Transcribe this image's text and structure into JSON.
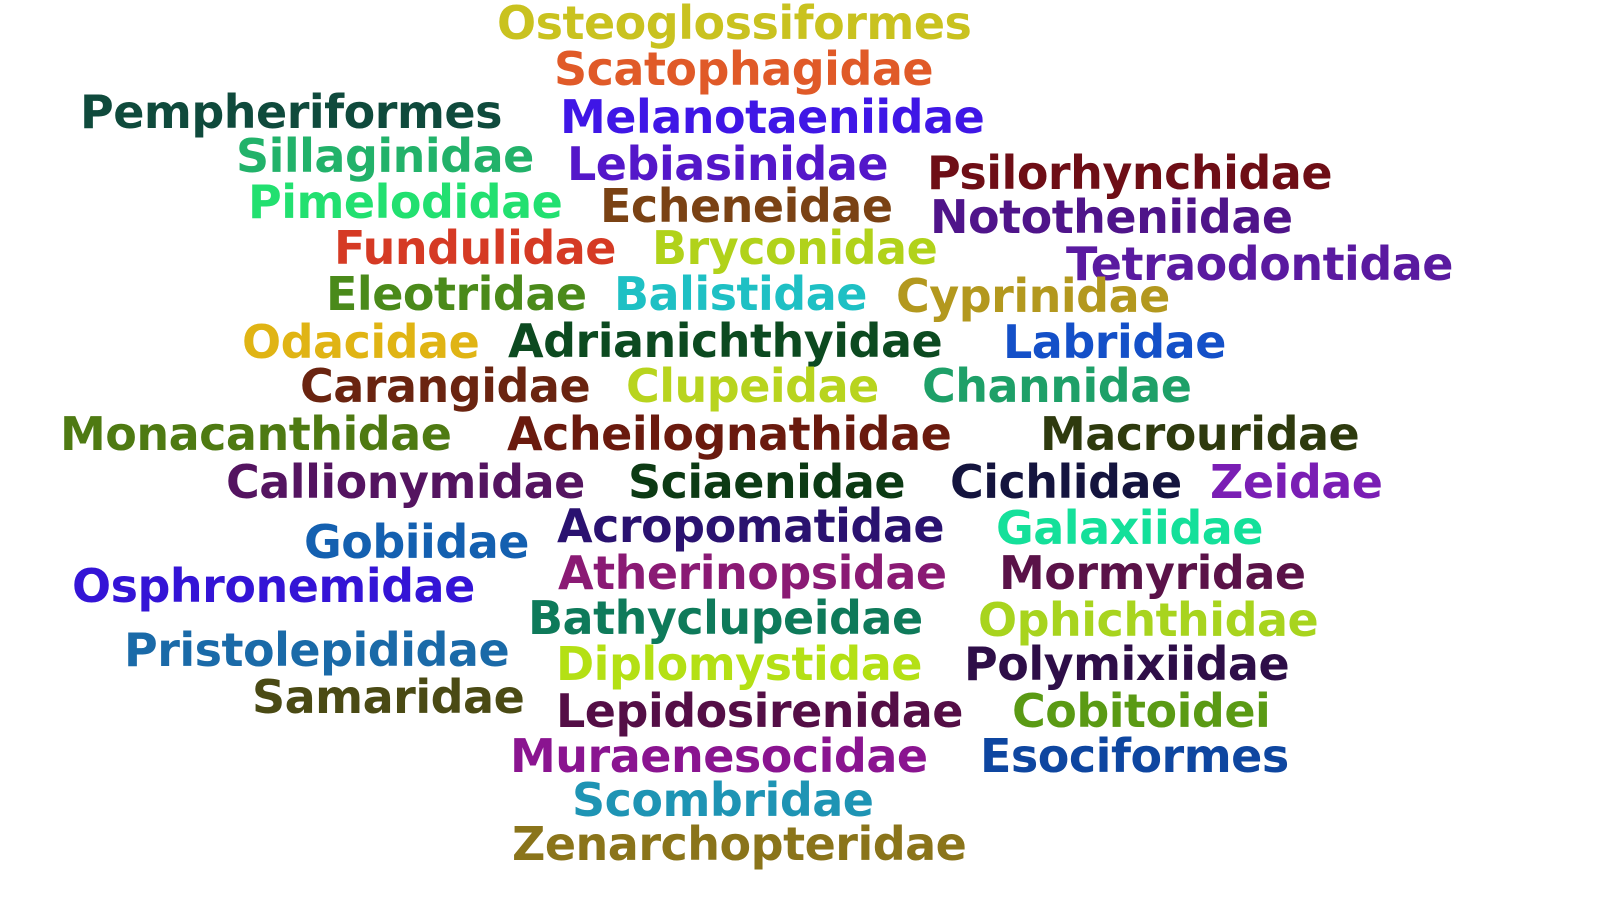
{
  "words": [
    {
      "text": "Osteoglossiformes",
      "color": "#c9c21f"
    },
    {
      "text": "Scatophagidae",
      "color": "#e05a28"
    },
    {
      "text": "Pempheriformes",
      "color": "#0f4a3c"
    },
    {
      "text": "Melanotaeniidae",
      "color": "#3f16e6"
    },
    {
      "text": "Sillaginidae",
      "color": "#22b26a"
    },
    {
      "text": "Lebiasinidae",
      "color": "#5417c9"
    },
    {
      "text": "Psilorhynchidae",
      "color": "#6e0e16"
    },
    {
      "text": "Pimelodidae",
      "color": "#22e070"
    },
    {
      "text": "Echeneidae",
      "color": "#7a4214"
    },
    {
      "text": "Nototheniidae",
      "color": "#4f148a"
    },
    {
      "text": "Fundulidae",
      "color": "#d53a24"
    },
    {
      "text": "Bryconidae",
      "color": "#b1d21a"
    },
    {
      "text": "Tetraodontidae",
      "color": "#5a1aa0"
    },
    {
      "text": "Eleotridae",
      "color": "#4a8a1a"
    },
    {
      "text": "Balistidae",
      "color": "#1ec0c4"
    },
    {
      "text": "Cyprinidae",
      "color": "#b3981e"
    },
    {
      "text": "Odacidae",
      "color": "#e0b414"
    },
    {
      "text": "Adrianichthyidae",
      "color": "#0c4a20"
    },
    {
      "text": "Labridae",
      "color": "#1450c8"
    },
    {
      "text": "Carangidae",
      "color": "#6a2410"
    },
    {
      "text": "Clupeidae",
      "color": "#b8d41e"
    },
    {
      "text": "Channidae",
      "color": "#1ea068"
    },
    {
      "text": "Monacanthidae",
      "color": "#4e7a12"
    },
    {
      "text": "Acheilognathidae",
      "color": "#6a1a0e"
    },
    {
      "text": "Macrouridae",
      "color": "#2e3a0e"
    },
    {
      "text": "Callionymidae",
      "color": "#541460"
    },
    {
      "text": "Sciaenidae",
      "color": "#0c3a14"
    },
    {
      "text": "Cichlidae",
      "color": "#14143e"
    },
    {
      "text": "Zeidae",
      "color": "#7a1eb4"
    },
    {
      "text": "Gobiidae",
      "color": "#1460b0"
    },
    {
      "text": "Acropomatidae",
      "color": "#2a1270"
    },
    {
      "text": "Galaxiidae",
      "color": "#14e09a"
    },
    {
      "text": "Osphronemidae",
      "color": "#3414d6"
    },
    {
      "text": "Atherinopsidae",
      "color": "#8a1a74"
    },
    {
      "text": "Mormyridae",
      "color": "#5a1248"
    },
    {
      "text": "Bathyclupeidae",
      "color": "#0e7a5a"
    },
    {
      "text": "Ophichthidae",
      "color": "#a8d41e"
    },
    {
      "text": "Pristolepididae",
      "color": "#1a6aa8"
    },
    {
      "text": "Diplomystidae",
      "color": "#b4e014"
    },
    {
      "text": "Polymixiidae",
      "color": "#2e0e48"
    },
    {
      "text": "Samaridae",
      "color": "#4a4a14"
    },
    {
      "text": "Lepidosirenidae",
      "color": "#540e46"
    },
    {
      "text": "Cobitoidei",
      "color": "#5a9a14"
    },
    {
      "text": "Muraenesocidae",
      "color": "#8a1490"
    },
    {
      "text": "Esociformes",
      "color": "#0e46a0"
    },
    {
      "text": "Scombridae",
      "color": "#1e94b4"
    },
    {
      "text": "Zenarchopteridae",
      "color": "#8a741a"
    }
  ]
}
